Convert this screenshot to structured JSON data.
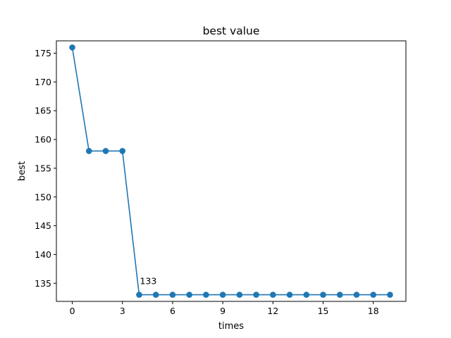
{
  "chart_data": {
    "type": "line",
    "title": "best value",
    "xlabel": "times",
    "ylabel": "best",
    "x": [
      0,
      1,
      2,
      3,
      4,
      5,
      6,
      7,
      8,
      9,
      10,
      11,
      12,
      13,
      14,
      15,
      16,
      17,
      18,
      19
    ],
    "series": [
      {
        "values": [
          176,
          158,
          158,
          158,
          133,
          133,
          133,
          133,
          133,
          133,
          133,
          133,
          133,
          133,
          133,
          133,
          133,
          133,
          133,
          133
        ],
        "color": "#1f77b4",
        "marker": "circle"
      }
    ],
    "xticks": [
      0,
      3,
      6,
      9,
      12,
      15,
      18
    ],
    "yticks": [
      135,
      140,
      145,
      150,
      155,
      160,
      165,
      170,
      175
    ],
    "xlim": [
      -0.95,
      19.95
    ],
    "ylim": [
      131.85,
      177.15
    ],
    "grid": false,
    "legend": "none",
    "annotations": [
      {
        "x": 4,
        "y": 133,
        "text": "133"
      }
    ]
  }
}
